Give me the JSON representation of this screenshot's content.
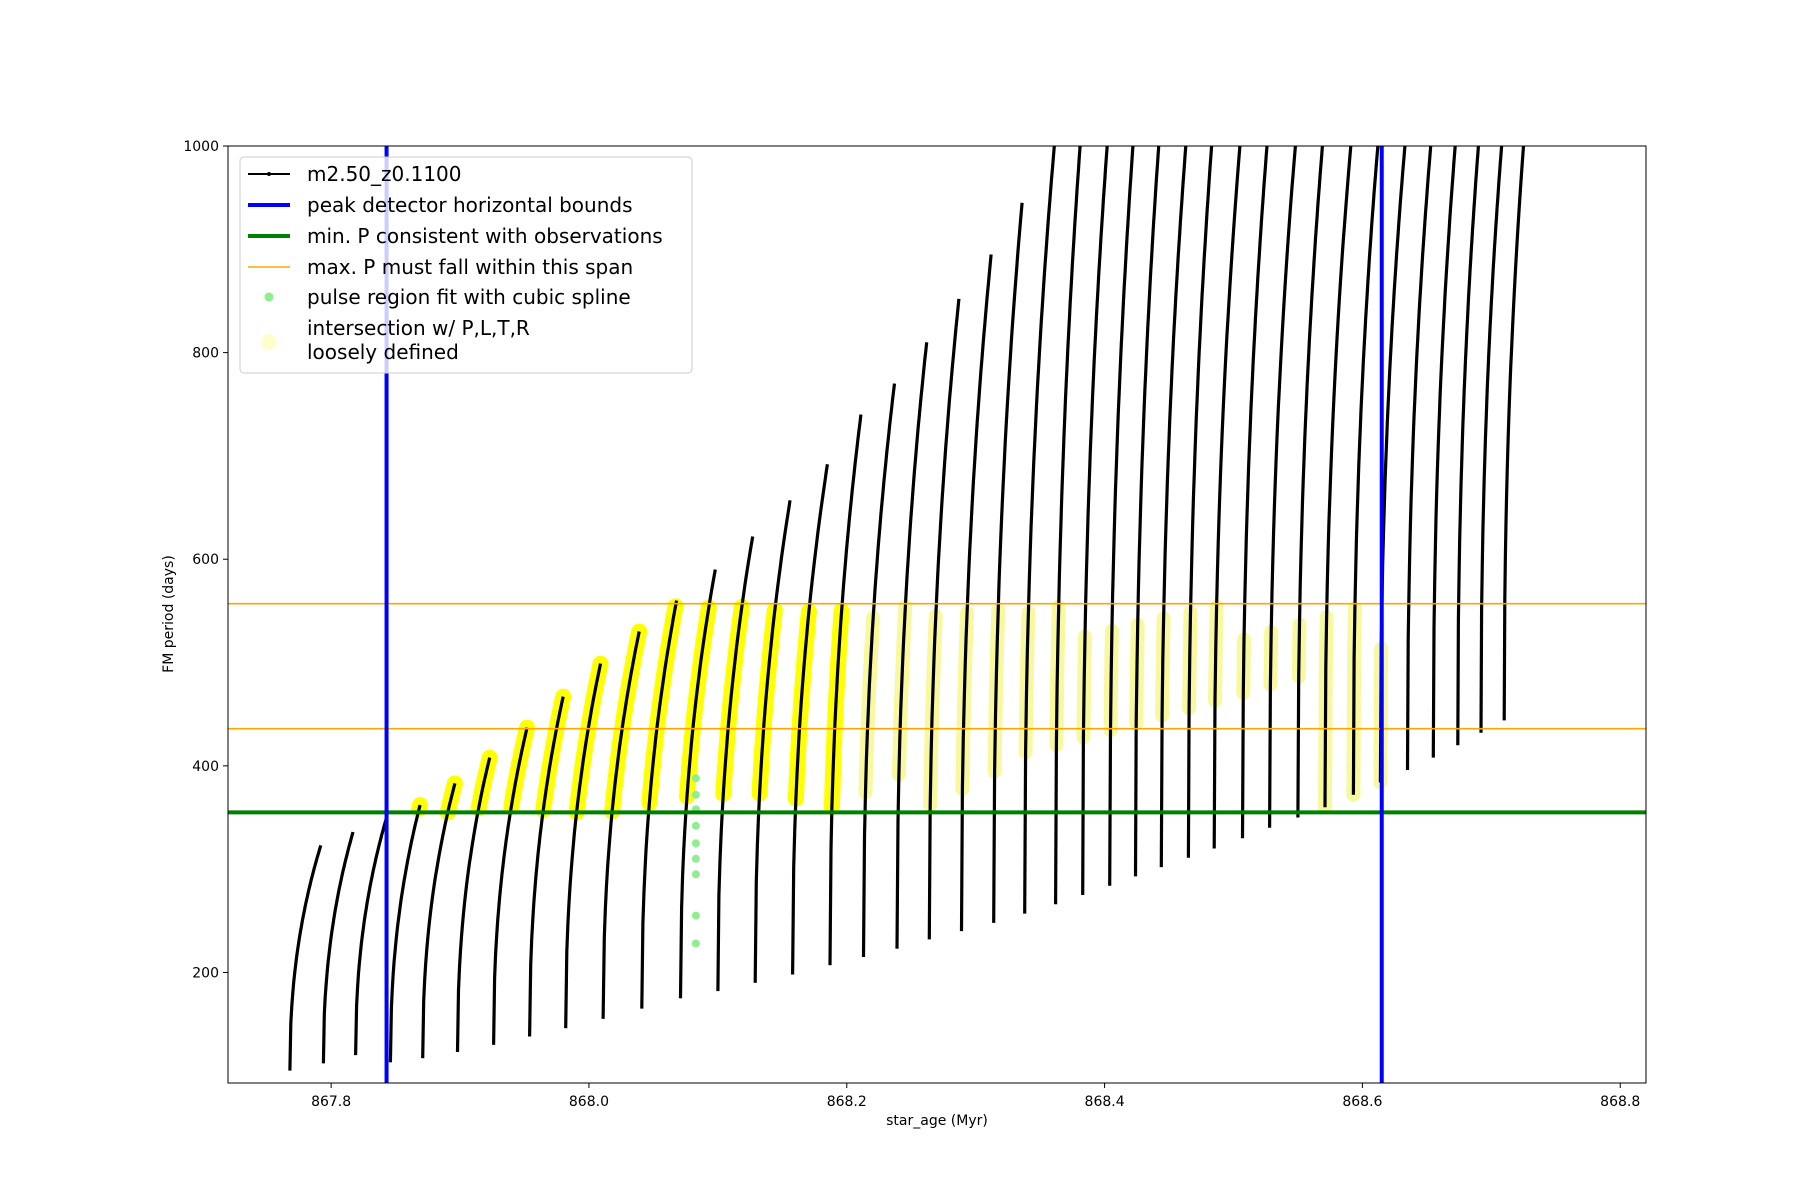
{
  "chart_data": {
    "type": "line",
    "title": "",
    "xlabel": "star_age (Myr)",
    "ylabel": "FM period (days)",
    "xlim": [
      867.72,
      868.82
    ],
    "ylim": [
      93,
      1000
    ],
    "x_ticks": [
      867.8,
      868.0,
      868.2,
      868.4,
      868.6,
      868.8
    ],
    "x_tick_labels": [
      "867.8",
      "868.0",
      "868.2",
      "868.4",
      "868.6",
      "868.8"
    ],
    "y_ticks": [
      200,
      400,
      600,
      800,
      1000
    ],
    "y_tick_labels": [
      "200",
      "400",
      "600",
      "800",
      "1000"
    ],
    "grid": false,
    "legend_position": "top-left",
    "legend": [
      {
        "label": "m2.50_z0.1100",
        "marker": "line-dot",
        "color": "#000000"
      },
      {
        "label": "peak detector horizontal bounds",
        "marker": "thick-line",
        "color": "#0000ff"
      },
      {
        "label": "min. P consistent with observations",
        "marker": "thick-line",
        "color": "#008000"
      },
      {
        "label": "max. P must fall within this span",
        "marker": "thin-line",
        "color": "#ffa500"
      },
      {
        "label": "pulse region fit with cubic spline",
        "marker": "dot",
        "color": "#90ee90"
      },
      {
        "label_lines": [
          "intersection w/ P,L,T,R",
          "loosely defined"
        ],
        "marker": "big-dot",
        "color": "#ffffcc"
      }
    ],
    "reference_lines": {
      "vertical_blue": [
        867.843,
        868.615
      ],
      "horizontal_green": 355,
      "horizontal_orange": [
        436,
        557
      ]
    },
    "series": [
      {
        "name": "m2.50_z0.1100",
        "color": "#000000",
        "pulses": [
          {
            "x_start": 867.768,
            "x_end": 867.792,
            "min": 105,
            "max": 323
          },
          {
            "x_start": 867.794,
            "x_end": 867.817,
            "min": 112,
            "max": 336
          },
          {
            "x_start": 867.819,
            "x_end": 867.843,
            "min": 120,
            "max": 350
          },
          {
            "x_start": 867.846,
            "x_end": 867.869,
            "min": 113,
            "max": 362
          },
          {
            "x_start": 867.871,
            "x_end": 867.896,
            "min": 117,
            "max": 383
          },
          {
            "x_start": 867.898,
            "x_end": 867.923,
            "min": 123,
            "max": 408
          },
          {
            "x_start": 867.926,
            "x_end": 867.952,
            "min": 130,
            "max": 437
          },
          {
            "x_start": 867.954,
            "x_end": 867.98,
            "min": 138,
            "max": 467
          },
          {
            "x_start": 867.982,
            "x_end": 868.009,
            "min": 146,
            "max": 499
          },
          {
            "x_start": 868.011,
            "x_end": 868.039,
            "min": 155,
            "max": 530
          },
          {
            "x_start": 868.041,
            "x_end": 868.068,
            "min": 165,
            "max": 560
          },
          {
            "x_start": 868.071,
            "x_end": 868.098,
            "min": 175,
            "max": 590
          },
          {
            "x_start": 868.1,
            "x_end": 868.127,
            "min": 182,
            "max": 622
          },
          {
            "x_start": 868.129,
            "x_end": 868.156,
            "min": 190,
            "max": 657
          },
          {
            "x_start": 868.158,
            "x_end": 868.185,
            "min": 198,
            "max": 692
          },
          {
            "x_start": 868.187,
            "x_end": 868.211,
            "min": 207,
            "max": 740
          },
          {
            "x_start": 868.213,
            "x_end": 868.237,
            "min": 215,
            "max": 770
          },
          {
            "x_start": 868.239,
            "x_end": 868.262,
            "min": 223,
            "max": 810
          },
          {
            "x_start": 868.264,
            "x_end": 868.287,
            "min": 232,
            "max": 852
          },
          {
            "x_start": 868.289,
            "x_end": 868.312,
            "min": 240,
            "max": 895
          },
          {
            "x_start": 868.314,
            "x_end": 868.336,
            "min": 248,
            "max": 945
          },
          {
            "x_start": 868.338,
            "x_end": 868.361,
            "min": 257,
            "max": 1000
          },
          {
            "x_start": 868.362,
            "x_end": 868.381,
            "min": 266,
            "max": 1000
          },
          {
            "x_start": 868.383,
            "x_end": 868.402,
            "min": 275,
            "max": 1000
          },
          {
            "x_start": 868.404,
            "x_end": 868.422,
            "min": 284,
            "max": 1000
          },
          {
            "x_start": 868.424,
            "x_end": 868.442,
            "min": 293,
            "max": 1000
          },
          {
            "x_start": 868.444,
            "x_end": 868.463,
            "min": 302,
            "max": 1000
          },
          {
            "x_start": 868.465,
            "x_end": 868.483,
            "min": 311,
            "max": 1000
          },
          {
            "x_start": 868.485,
            "x_end": 868.505,
            "min": 320,
            "max": 1000
          },
          {
            "x_start": 868.507,
            "x_end": 868.526,
            "min": 330,
            "max": 1000
          },
          {
            "x_start": 868.528,
            "x_end": 868.548,
            "min": 340,
            "max": 1000
          },
          {
            "x_start": 868.55,
            "x_end": 868.569,
            "min": 350,
            "max": 1000
          },
          {
            "x_start": 868.571,
            "x_end": 868.591,
            "min": 360,
            "max": 1000
          },
          {
            "x_start": 868.593,
            "x_end": 868.612,
            "min": 372,
            "max": 1000
          },
          {
            "x_start": 868.614,
            "x_end": 868.633,
            "min": 384,
            "max": 1000
          },
          {
            "x_start": 868.635,
            "x_end": 868.653,
            "min": 396,
            "max": 1000
          },
          {
            "x_start": 868.655,
            "x_end": 868.672,
            "min": 408,
            "max": 1000
          },
          {
            "x_start": 868.674,
            "x_end": 868.69,
            "min": 420,
            "max": 1000
          },
          {
            "x_start": 868.692,
            "x_end": 868.708,
            "min": 432,
            "max": 1000
          },
          {
            "x_start": 868.71,
            "x_end": 868.725,
            "min": 444,
            "max": 1000
          }
        ]
      },
      {
        "name": "pulse region fit with cubic spline",
        "color": "#90ee90",
        "points": [
          {
            "x": 868.083,
            "y": 228
          },
          {
            "x": 868.083,
            "y": 255
          },
          {
            "x": 868.083,
            "y": 295
          },
          {
            "x": 868.083,
            "y": 310
          },
          {
            "x": 868.083,
            "y": 325
          },
          {
            "x": 868.083,
            "y": 342
          },
          {
            "x": 868.083,
            "y": 358
          },
          {
            "x": 868.083,
            "y": 372
          },
          {
            "x": 868.083,
            "y": 388
          }
        ]
      }
    ]
  }
}
